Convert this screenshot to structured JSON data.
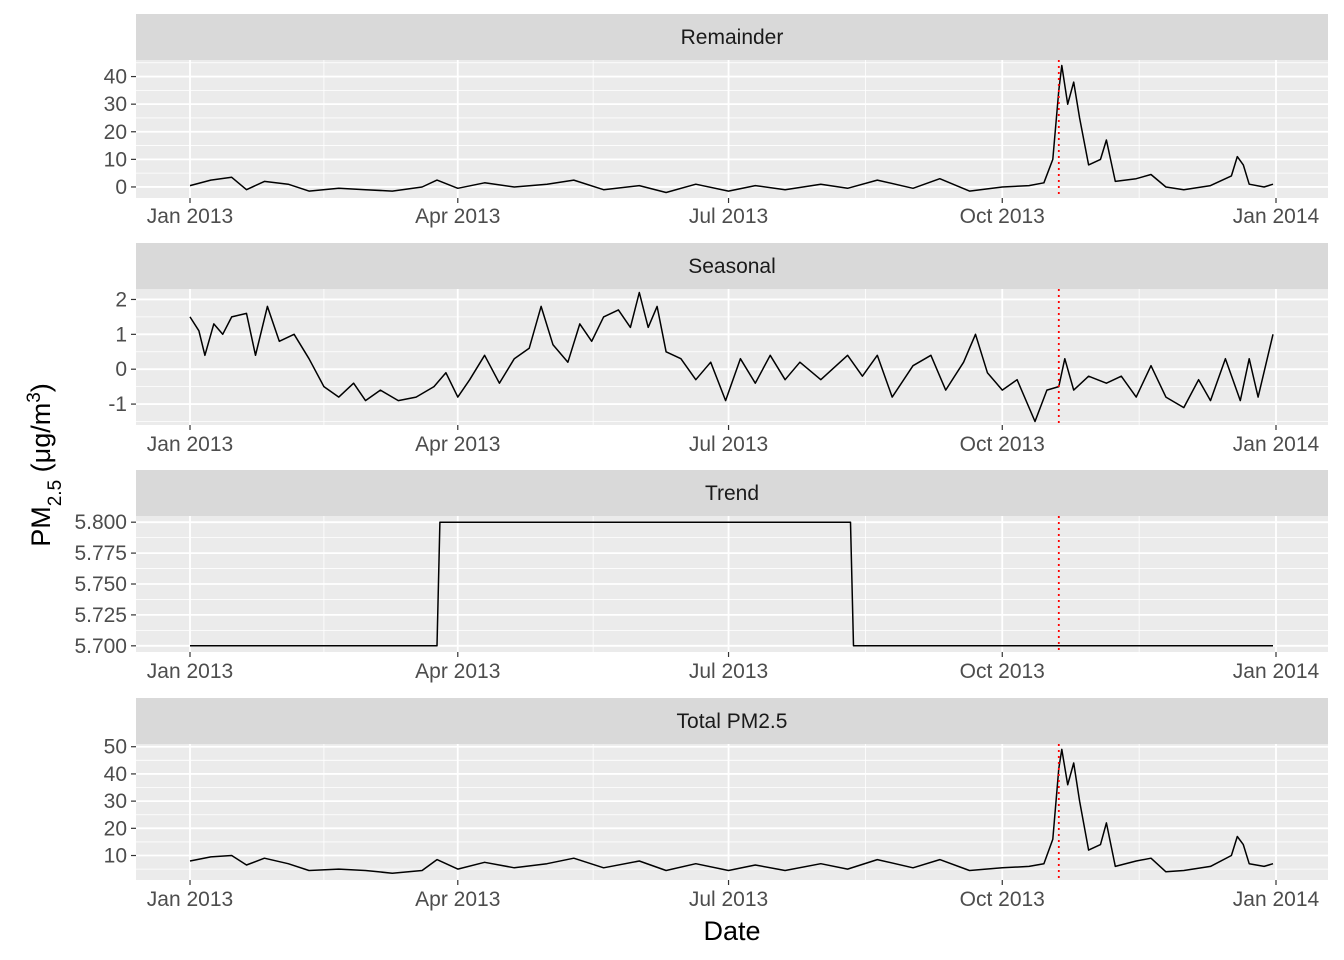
{
  "chart_data": {
    "type": "line",
    "xlabel": "Date",
    "ylabel": {
      "main": "PM",
      "sub": "2.5",
      "unit_open": " (μg/m",
      "sup": "3",
      "unit_close": ")"
    },
    "x_range": [
      "2013-01-01",
      "2014-01-01"
    ],
    "x_ticks": [
      {
        "date": "2013-01-01",
        "label": "Jan 2013"
      },
      {
        "date": "2013-04-01",
        "label": "Apr 2013"
      },
      {
        "date": "2013-07-01",
        "label": "Jul 2013"
      },
      {
        "date": "2013-10-01",
        "label": "Oct 2013"
      },
      {
        "date": "2014-01-01",
        "label": "Jan 2014"
      }
    ],
    "event_line": {
      "date": "2013-10-20",
      "color": "#ff0000",
      "style": "dotted"
    },
    "line_color": "#000000",
    "panel_background": "#ebebeb",
    "strip_background": "#d9d9d9",
    "grid": true,
    "panels": [
      {
        "name": "Remainder",
        "ylim": [
          -4,
          46
        ],
        "y_ticks": [
          0,
          10,
          20,
          30,
          40
        ],
        "y_labels": [
          "0",
          "10",
          "20",
          "30",
          "40"
        ],
        "points": [
          [
            "2013-01-01",
            0.5
          ],
          [
            "2013-01-08",
            2.5
          ],
          [
            "2013-01-15",
            3.5
          ],
          [
            "2013-01-20",
            -1
          ],
          [
            "2013-01-26",
            2
          ],
          [
            "2013-02-03",
            1
          ],
          [
            "2013-02-10",
            -1.5
          ],
          [
            "2013-02-20",
            -0.5
          ],
          [
            "2013-03-01",
            -1
          ],
          [
            "2013-03-10",
            -1.5
          ],
          [
            "2013-03-20",
            0
          ],
          [
            "2013-03-25",
            2.5
          ],
          [
            "2013-04-01",
            -0.5
          ],
          [
            "2013-04-10",
            1.5
          ],
          [
            "2013-04-20",
            0
          ],
          [
            "2013-05-01",
            1
          ],
          [
            "2013-05-10",
            2.5
          ],
          [
            "2013-05-20",
            -1
          ],
          [
            "2013-06-01",
            0.5
          ],
          [
            "2013-06-10",
            -2
          ],
          [
            "2013-06-20",
            1
          ],
          [
            "2013-07-01",
            -1.5
          ],
          [
            "2013-07-10",
            0.5
          ],
          [
            "2013-07-20",
            -1
          ],
          [
            "2013-08-01",
            1
          ],
          [
            "2013-08-10",
            -0.5
          ],
          [
            "2013-08-20",
            2.5
          ],
          [
            "2013-09-01",
            -0.5
          ],
          [
            "2013-09-10",
            3
          ],
          [
            "2013-09-20",
            -1.5
          ],
          [
            "2013-10-01",
            0
          ],
          [
            "2013-10-10",
            0.5
          ],
          [
            "2013-10-15",
            1.5
          ],
          [
            "2013-10-18",
            10
          ],
          [
            "2013-10-20",
            35
          ],
          [
            "2013-10-21",
            44
          ],
          [
            "2013-10-23",
            30
          ],
          [
            "2013-10-25",
            38
          ],
          [
            "2013-10-27",
            25
          ],
          [
            "2013-10-30",
            8
          ],
          [
            "2013-11-03",
            10
          ],
          [
            "2013-11-05",
            17
          ],
          [
            "2013-11-08",
            2
          ],
          [
            "2013-11-15",
            3
          ],
          [
            "2013-11-20",
            4.5
          ],
          [
            "2013-11-25",
            0
          ],
          [
            "2013-12-01",
            -1
          ],
          [
            "2013-12-10",
            0.5
          ],
          [
            "2013-12-17",
            4
          ],
          [
            "2013-12-19",
            11
          ],
          [
            "2013-12-21",
            8
          ],
          [
            "2013-12-23",
            1
          ],
          [
            "2013-12-28",
            0
          ],
          [
            "2013-12-31",
            1
          ]
        ]
      },
      {
        "name": "Seasonal",
        "ylim": [
          -1.6,
          2.3
        ],
        "y_ticks": [
          -1,
          0,
          1,
          2
        ],
        "y_labels": [
          "-1",
          "0",
          "1",
          "2"
        ],
        "points": [
          [
            "2013-01-01",
            1.5
          ],
          [
            "2013-01-04",
            1.1
          ],
          [
            "2013-01-06",
            0.4
          ],
          [
            "2013-01-09",
            1.3
          ],
          [
            "2013-01-12",
            1.0
          ],
          [
            "2013-01-15",
            1.5
          ],
          [
            "2013-01-20",
            1.6
          ],
          [
            "2013-01-23",
            0.4
          ],
          [
            "2013-01-27",
            1.8
          ],
          [
            "2013-01-31",
            0.8
          ],
          [
            "2013-02-05",
            1.0
          ],
          [
            "2013-02-10",
            0.3
          ],
          [
            "2013-02-15",
            -0.5
          ],
          [
            "2013-02-20",
            -0.8
          ],
          [
            "2013-02-25",
            -0.4
          ],
          [
            "2013-03-01",
            -0.9
          ],
          [
            "2013-03-06",
            -0.6
          ],
          [
            "2013-03-12",
            -0.9
          ],
          [
            "2013-03-18",
            -0.8
          ],
          [
            "2013-03-24",
            -0.5
          ],
          [
            "2013-03-28",
            -0.1
          ],
          [
            "2013-04-01",
            -0.8
          ],
          [
            "2013-04-05",
            -0.3
          ],
          [
            "2013-04-10",
            0.4
          ],
          [
            "2013-04-15",
            -0.4
          ],
          [
            "2013-04-20",
            0.3
          ],
          [
            "2013-04-25",
            0.6
          ],
          [
            "2013-04-29",
            1.8
          ],
          [
            "2013-05-03",
            0.7
          ],
          [
            "2013-05-08",
            0.2
          ],
          [
            "2013-05-12",
            1.3
          ],
          [
            "2013-05-16",
            0.8
          ],
          [
            "2013-05-20",
            1.5
          ],
          [
            "2013-05-25",
            1.7
          ],
          [
            "2013-05-29",
            1.2
          ],
          [
            "2013-06-01",
            2.2
          ],
          [
            "2013-06-04",
            1.2
          ],
          [
            "2013-06-07",
            1.8
          ],
          [
            "2013-06-10",
            0.5
          ],
          [
            "2013-06-15",
            0.3
          ],
          [
            "2013-06-20",
            -0.3
          ],
          [
            "2013-06-25",
            0.2
          ],
          [
            "2013-06-30",
            -0.9
          ],
          [
            "2013-07-05",
            0.3
          ],
          [
            "2013-07-10",
            -0.4
          ],
          [
            "2013-07-15",
            0.4
          ],
          [
            "2013-07-20",
            -0.3
          ],
          [
            "2013-07-25",
            0.2
          ],
          [
            "2013-08-01",
            -0.3
          ],
          [
            "2013-08-10",
            0.4
          ],
          [
            "2013-08-15",
            -0.2
          ],
          [
            "2013-08-20",
            0.4
          ],
          [
            "2013-08-25",
            -0.8
          ],
          [
            "2013-09-01",
            0.1
          ],
          [
            "2013-09-07",
            0.4
          ],
          [
            "2013-09-12",
            -0.6
          ],
          [
            "2013-09-18",
            0.2
          ],
          [
            "2013-09-22",
            1.0
          ],
          [
            "2013-09-26",
            -0.1
          ],
          [
            "2013-10-01",
            -0.6
          ],
          [
            "2013-10-06",
            -0.3
          ],
          [
            "2013-10-12",
            -1.5
          ],
          [
            "2013-10-16",
            -0.6
          ],
          [
            "2013-10-20",
            -0.5
          ],
          [
            "2013-10-22",
            0.3
          ],
          [
            "2013-10-25",
            -0.6
          ],
          [
            "2013-10-30",
            -0.2
          ],
          [
            "2013-11-05",
            -0.4
          ],
          [
            "2013-11-10",
            -0.2
          ],
          [
            "2013-11-15",
            -0.8
          ],
          [
            "2013-11-20",
            0.1
          ],
          [
            "2013-11-25",
            -0.8
          ],
          [
            "2013-12-01",
            -1.1
          ],
          [
            "2013-12-06",
            -0.3
          ],
          [
            "2013-12-10",
            -0.9
          ],
          [
            "2013-12-15",
            0.3
          ],
          [
            "2013-12-20",
            -0.9
          ],
          [
            "2013-12-23",
            0.3
          ],
          [
            "2013-12-26",
            -0.8
          ],
          [
            "2013-12-31",
            1.0
          ]
        ]
      },
      {
        "name": "Trend",
        "ylim": [
          5.695,
          5.805
        ],
        "y_ticks": [
          5.7,
          5.725,
          5.75,
          5.775,
          5.8
        ],
        "y_labels": [
          "5.700",
          "5.725",
          "5.750",
          "5.775",
          "5.800"
        ],
        "points": [
          [
            "2013-01-01",
            5.7
          ],
          [
            "2013-03-25",
            5.7
          ],
          [
            "2013-03-26",
            5.8
          ],
          [
            "2013-08-11",
            5.8
          ],
          [
            "2013-08-12",
            5.7
          ],
          [
            "2013-12-31",
            5.7
          ]
        ]
      },
      {
        "name": "Total PM2.5",
        "ylim": [
          1,
          51
        ],
        "y_ticks": [
          10,
          20,
          30,
          40,
          50
        ],
        "y_labels": [
          "10",
          "20",
          "30",
          "40",
          "50"
        ],
        "points": [
          [
            "2013-01-01",
            8
          ],
          [
            "2013-01-08",
            9.5
          ],
          [
            "2013-01-15",
            10
          ],
          [
            "2013-01-20",
            6.5
          ],
          [
            "2013-01-26",
            9
          ],
          [
            "2013-02-03",
            7
          ],
          [
            "2013-02-10",
            4.5
          ],
          [
            "2013-02-20",
            5
          ],
          [
            "2013-03-01",
            4.5
          ],
          [
            "2013-03-10",
            3.5
          ],
          [
            "2013-03-20",
            4.5
          ],
          [
            "2013-03-25",
            8.5
          ],
          [
            "2013-04-01",
            5
          ],
          [
            "2013-04-10",
            7.5
          ],
          [
            "2013-04-20",
            5.5
          ],
          [
            "2013-05-01",
            7
          ],
          [
            "2013-05-10",
            9
          ],
          [
            "2013-05-20",
            5.5
          ],
          [
            "2013-06-01",
            8
          ],
          [
            "2013-06-10",
            4.5
          ],
          [
            "2013-06-20",
            7
          ],
          [
            "2013-07-01",
            4.5
          ],
          [
            "2013-07-10",
            6.5
          ],
          [
            "2013-07-20",
            4.5
          ],
          [
            "2013-08-01",
            7
          ],
          [
            "2013-08-10",
            5
          ],
          [
            "2013-08-20",
            8.5
          ],
          [
            "2013-09-01",
            5.5
          ],
          [
            "2013-09-10",
            8.5
          ],
          [
            "2013-09-20",
            4.5
          ],
          [
            "2013-10-01",
            5.5
          ],
          [
            "2013-10-10",
            6
          ],
          [
            "2013-10-15",
            7
          ],
          [
            "2013-10-18",
            16
          ],
          [
            "2013-10-20",
            42
          ],
          [
            "2013-10-21",
            49
          ],
          [
            "2013-10-23",
            36
          ],
          [
            "2013-10-25",
            44
          ],
          [
            "2013-10-27",
            30
          ],
          [
            "2013-10-30",
            12
          ],
          [
            "2013-11-03",
            14
          ],
          [
            "2013-11-05",
            22
          ],
          [
            "2013-11-08",
            6
          ],
          [
            "2013-11-15",
            8
          ],
          [
            "2013-11-20",
            9
          ],
          [
            "2013-11-25",
            4
          ],
          [
            "2013-12-01",
            4.5
          ],
          [
            "2013-12-10",
            6
          ],
          [
            "2013-12-17",
            10
          ],
          [
            "2013-12-19",
            17
          ],
          [
            "2013-12-21",
            14
          ],
          [
            "2013-12-23",
            7
          ],
          [
            "2013-12-28",
            6
          ],
          [
            "2013-12-31",
            7
          ]
        ]
      }
    ]
  }
}
